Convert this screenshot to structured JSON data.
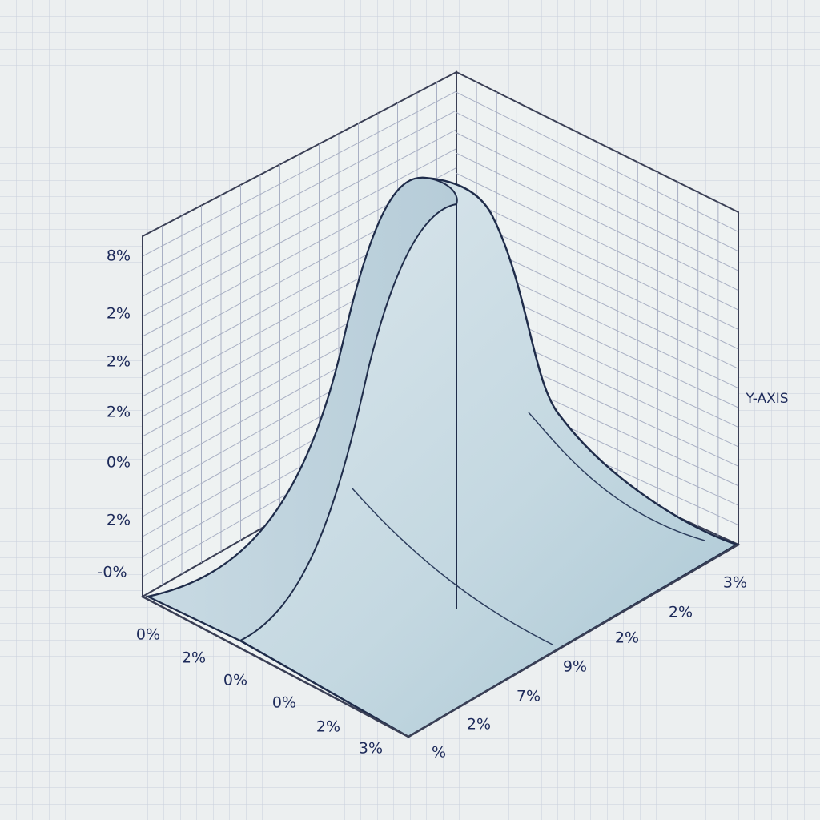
{
  "left_axis_labels": [
    "8%",
    "2%",
    "2%",
    "2%",
    "0%",
    "2%",
    "-0%"
  ],
  "front_axis_labels": [
    "0%",
    "2%",
    "0%",
    "0%",
    "2%",
    "3%"
  ],
  "right_axis_labels": [
    "3%",
    "2%",
    "2%",
    "9%",
    "7%",
    "2%",
    "%"
  ],
  "axis_title": "Y-AXIS"
}
